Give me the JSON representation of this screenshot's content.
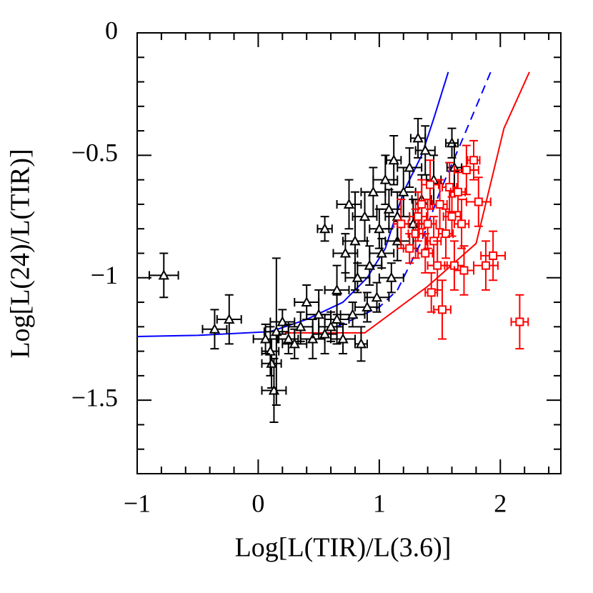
{
  "chart_data": {
    "type": "scatter",
    "x_label": "Log[L(TIR)/L(3.6)]",
    "y_label": "Log[L(24)/L(TIR)]",
    "xlim": [
      -1,
      2.5
    ],
    "ylim": [
      -1.8,
      0
    ],
    "xticks": [
      {
        "value": -1,
        "label": "−1"
      },
      0,
      1,
      2
    ],
    "yticks": [
      0,
      {
        "value": -0.5,
        "label": "−0.5"
      },
      {
        "value": -1,
        "label": "−1"
      },
      {
        "value": -1.5,
        "label": "−1.5"
      }
    ],
    "xminorticks": [
      -0.8,
      -0.6,
      -0.4,
      -0.2,
      0.2,
      0.4,
      0.6,
      0.8,
      1.2,
      1.4,
      1.6,
      1.8,
      2.2,
      2.4
    ],
    "yminorticks": [
      -0.1,
      -0.2,
      -0.3,
      -0.4,
      -0.6,
      -0.7,
      -0.8,
      -0.9,
      -1.1,
      -1.2,
      -1.3,
      -1.4,
      -1.6,
      -1.7
    ],
    "series": [
      {
        "color": "#000000",
        "marker": "triangle",
        "x": [
          -0.78,
          -0.36,
          -0.24,
          0.13,
          0.11,
          0.1,
          0.06,
          0.15,
          0.3,
          0.35,
          0.4,
          0.45,
          0.5,
          0.55,
          0.6,
          0.65,
          0.7,
          0.72,
          0.75,
          0.78,
          0.8,
          0.82,
          0.85,
          0.88,
          0.9,
          0.92,
          0.95,
          0.98,
          1.0,
          1.02,
          1.05,
          1.08,
          1.1,
          1.12,
          1.15,
          1.2,
          1.25,
          1.32,
          1.35,
          1.38,
          1.45,
          1.6,
          1.62,
          0.2,
          0.25,
          0.55,
          0.65,
          1.15,
          1.28
        ],
        "values": [
          -0.99,
          -1.21,
          -1.17,
          -1.46,
          -1.35,
          -1.3,
          -1.25,
          -1.22,
          -1.27,
          -1.2,
          -1.1,
          -1.25,
          -1.15,
          -0.8,
          -1.2,
          -1.05,
          -1.25,
          -0.9,
          -0.7,
          -1.15,
          -0.85,
          -1.0,
          -1.27,
          -0.75,
          -1.12,
          -0.95,
          -0.65,
          -1.08,
          -0.8,
          -0.9,
          -0.6,
          -0.72,
          -1.0,
          -0.52,
          -0.85,
          -0.65,
          -0.55,
          -0.43,
          -0.68,
          -0.48,
          -0.6,
          -0.45,
          -0.55,
          -1.18,
          -1.25,
          -1.23,
          -1.17,
          -0.75,
          -0.78
        ],
        "xerr": [
          0.12,
          0.1,
          0.1,
          0.1,
          0.08,
          0.07,
          0.1,
          0.1,
          0.1,
          0.1,
          0.1,
          0.1,
          0.1,
          0.06,
          0.1,
          0.1,
          0.1,
          0.1,
          0.1,
          0.1,
          0.1,
          0.1,
          0.05,
          0.1,
          0.1,
          0.1,
          0.1,
          0.1,
          0.08,
          0.1,
          0.1,
          0.1,
          0.1,
          0.06,
          0.1,
          0.1,
          0.1,
          0.06,
          0.08,
          0.08,
          0.06,
          0.05,
          0.06,
          0.1,
          0.08,
          0.1,
          0.1,
          0.1,
          0.1
        ],
        "yerr": [
          0.09,
          0.08,
          0.1,
          0.13,
          0.1,
          0.1,
          0.06,
          0.3,
          0.06,
          0.06,
          0.07,
          0.08,
          0.1,
          0.05,
          0.06,
          0.1,
          0.06,
          0.08,
          0.1,
          0.05,
          0.2,
          0.06,
          0.07,
          0.1,
          0.06,
          0.08,
          0.1,
          0.06,
          0.08,
          0.06,
          0.1,
          0.08,
          0.06,
          0.1,
          0.08,
          0.1,
          0.08,
          0.08,
          0.1,
          0.1,
          0.1,
          0.06,
          0.1,
          0.05,
          0.06,
          0.08,
          0.1,
          0.1,
          0.1
        ]
      },
      {
        "color": "#ff0000",
        "marker": "square",
        "x": [
          1.18,
          1.25,
          1.3,
          1.32,
          1.35,
          1.38,
          1.4,
          1.42,
          1.45,
          1.48,
          1.5,
          1.55,
          1.58,
          1.6,
          1.62,
          1.65,
          1.68,
          1.72,
          1.78,
          1.82,
          1.7,
          1.88,
          1.94,
          1.43,
          1.52,
          2.16
        ],
        "values": [
          -0.78,
          -0.88,
          -0.82,
          -0.75,
          -0.7,
          -0.9,
          -0.78,
          -0.62,
          -0.85,
          -0.95,
          -0.7,
          -0.82,
          -0.63,
          -0.75,
          -0.95,
          -0.65,
          -0.78,
          -0.56,
          -0.52,
          -0.69,
          -0.97,
          -0.95,
          -0.91,
          -1.06,
          -1.13,
          -1.18
        ],
        "xerr": [
          0.06,
          0.05,
          0.06,
          0.07,
          0.05,
          0.06,
          0.07,
          0.07,
          0.06,
          0.08,
          0.06,
          0.06,
          0.06,
          0.07,
          0.08,
          0.06,
          0.06,
          0.1,
          0.05,
          0.1,
          0.08,
          0.1,
          0.1,
          0.05,
          0.07,
          0.07
        ],
        "yerr": [
          0.1,
          0.06,
          0.1,
          0.1,
          0.1,
          0.08,
          0.1,
          0.1,
          0.1,
          0.1,
          0.1,
          0.1,
          0.1,
          0.08,
          0.1,
          0.08,
          0.1,
          0.1,
          0.08,
          0.1,
          0.1,
          0.1,
          0.1,
          0.08,
          0.12,
          0.11
        ]
      }
    ],
    "curves": [
      {
        "color": "#0000ff",
        "dashed": false,
        "x": [
          -1,
          -0.5,
          0.1,
          0.4,
          0.7,
          0.9,
          1.05,
          1.2,
          1.35,
          1.45,
          1.57
        ],
        "values": [
          -1.24,
          -1.235,
          -1.22,
          -1.17,
          -1.1,
          -1.0,
          -0.88,
          -0.65,
          -0.5,
          -0.35,
          -0.16
        ]
      },
      {
        "color": "#0000ff",
        "dashed": true,
        "x": [
          0.65,
          1.0,
          1.15,
          1.35,
          1.5,
          1.7,
          1.92
        ],
        "values": [
          -1.2,
          -1.12,
          -1.05,
          -0.85,
          -0.65,
          -0.42,
          -0.16
        ]
      },
      {
        "color": "#ff0000",
        "dashed": false,
        "x": [
          0.22,
          0.88,
          1.4,
          1.8,
          2.03,
          2.24
        ],
        "values": [
          -1.225,
          -1.225,
          -1.035,
          -0.86,
          -0.39,
          -0.16
        ]
      }
    ]
  }
}
